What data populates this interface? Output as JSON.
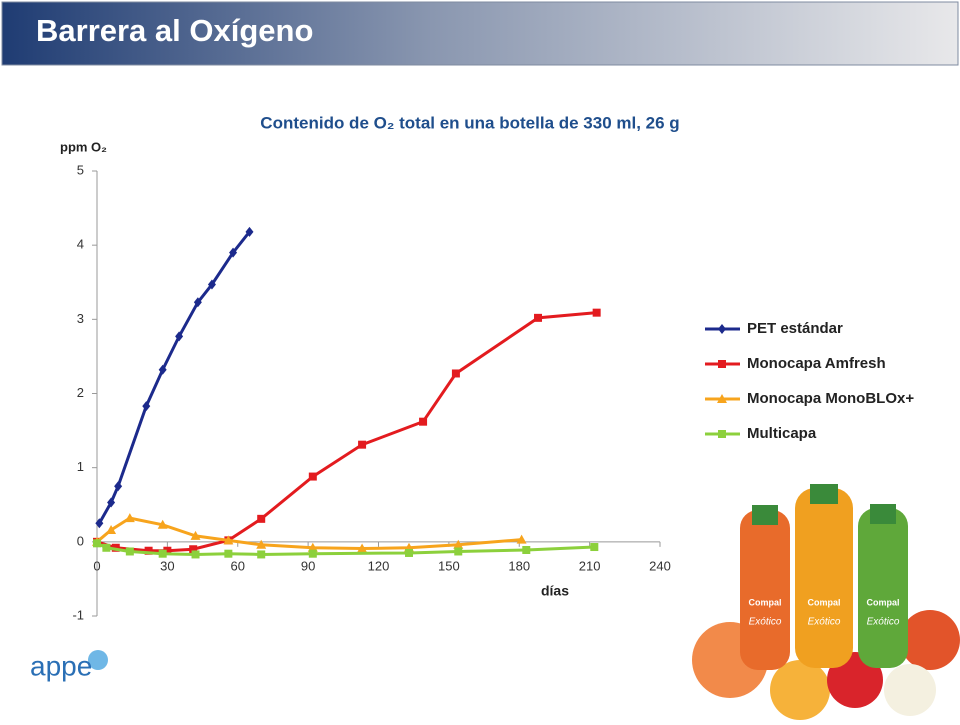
{
  "header": {
    "title": "Barrera al Oxígeno"
  },
  "chart_data": {
    "type": "line",
    "title": "Contenido de O₂ total en una botella de 330 ml, 26 g",
    "ylabel": "ppm O₂",
    "xlabel": "días",
    "xlim": [
      0,
      240
    ],
    "xticks": [
      0,
      30,
      60,
      90,
      120,
      150,
      180,
      210,
      240
    ],
    "ylim": [
      -1,
      5
    ],
    "yticks": [
      -1,
      0,
      1,
      2,
      3,
      4,
      5
    ],
    "legend": "right",
    "series": [
      {
        "name": "PET estándar",
        "color": "#1c2a8c",
        "marker": "diamond",
        "x": [
          1,
          6,
          9,
          21,
          28,
          35,
          43,
          49,
          58,
          65
        ],
        "values": [
          0.25,
          0.53,
          0.75,
          1.83,
          2.32,
          2.77,
          3.23,
          3.47,
          3.9,
          4.18
        ]
      },
      {
        "name": "Monocapa Amfresh",
        "color": "#e31b1f",
        "marker": "square",
        "x": [
          0,
          8,
          22,
          30,
          41,
          56,
          70,
          92,
          113,
          139,
          153,
          188,
          213
        ],
        "values": [
          0,
          -0.08,
          -0.12,
          -0.12,
          -0.1,
          0.02,
          0.31,
          0.88,
          1.31,
          1.62,
          2.27,
          3.02,
          3.09
        ]
      },
      {
        "name": "Monocapa MonoBLOx+",
        "color": "#f7a41d",
        "marker": "triangle",
        "x": [
          0,
          6,
          14,
          28,
          42,
          56,
          70,
          92,
          113,
          133,
          154,
          181
        ],
        "values": [
          0,
          0.16,
          0.32,
          0.23,
          0.08,
          0.02,
          -0.04,
          -0.08,
          -0.09,
          -0.08,
          -0.04,
          0.03
        ]
      },
      {
        "name": "Multicapa",
        "color": "#8cd03c",
        "marker": "square",
        "x": [
          0,
          4,
          14,
          28,
          42,
          56,
          70,
          92,
          133,
          154,
          183,
          212
        ],
        "values": [
          -0.02,
          -0.08,
          -0.13,
          -0.16,
          -0.17,
          -0.16,
          -0.17,
          -0.16,
          -0.15,
          -0.13,
          -0.11,
          -0.07
        ]
      }
    ]
  },
  "logo": {
    "text": "appe"
  },
  "product": {
    "brand": "Compal",
    "line": "Exótico"
  }
}
